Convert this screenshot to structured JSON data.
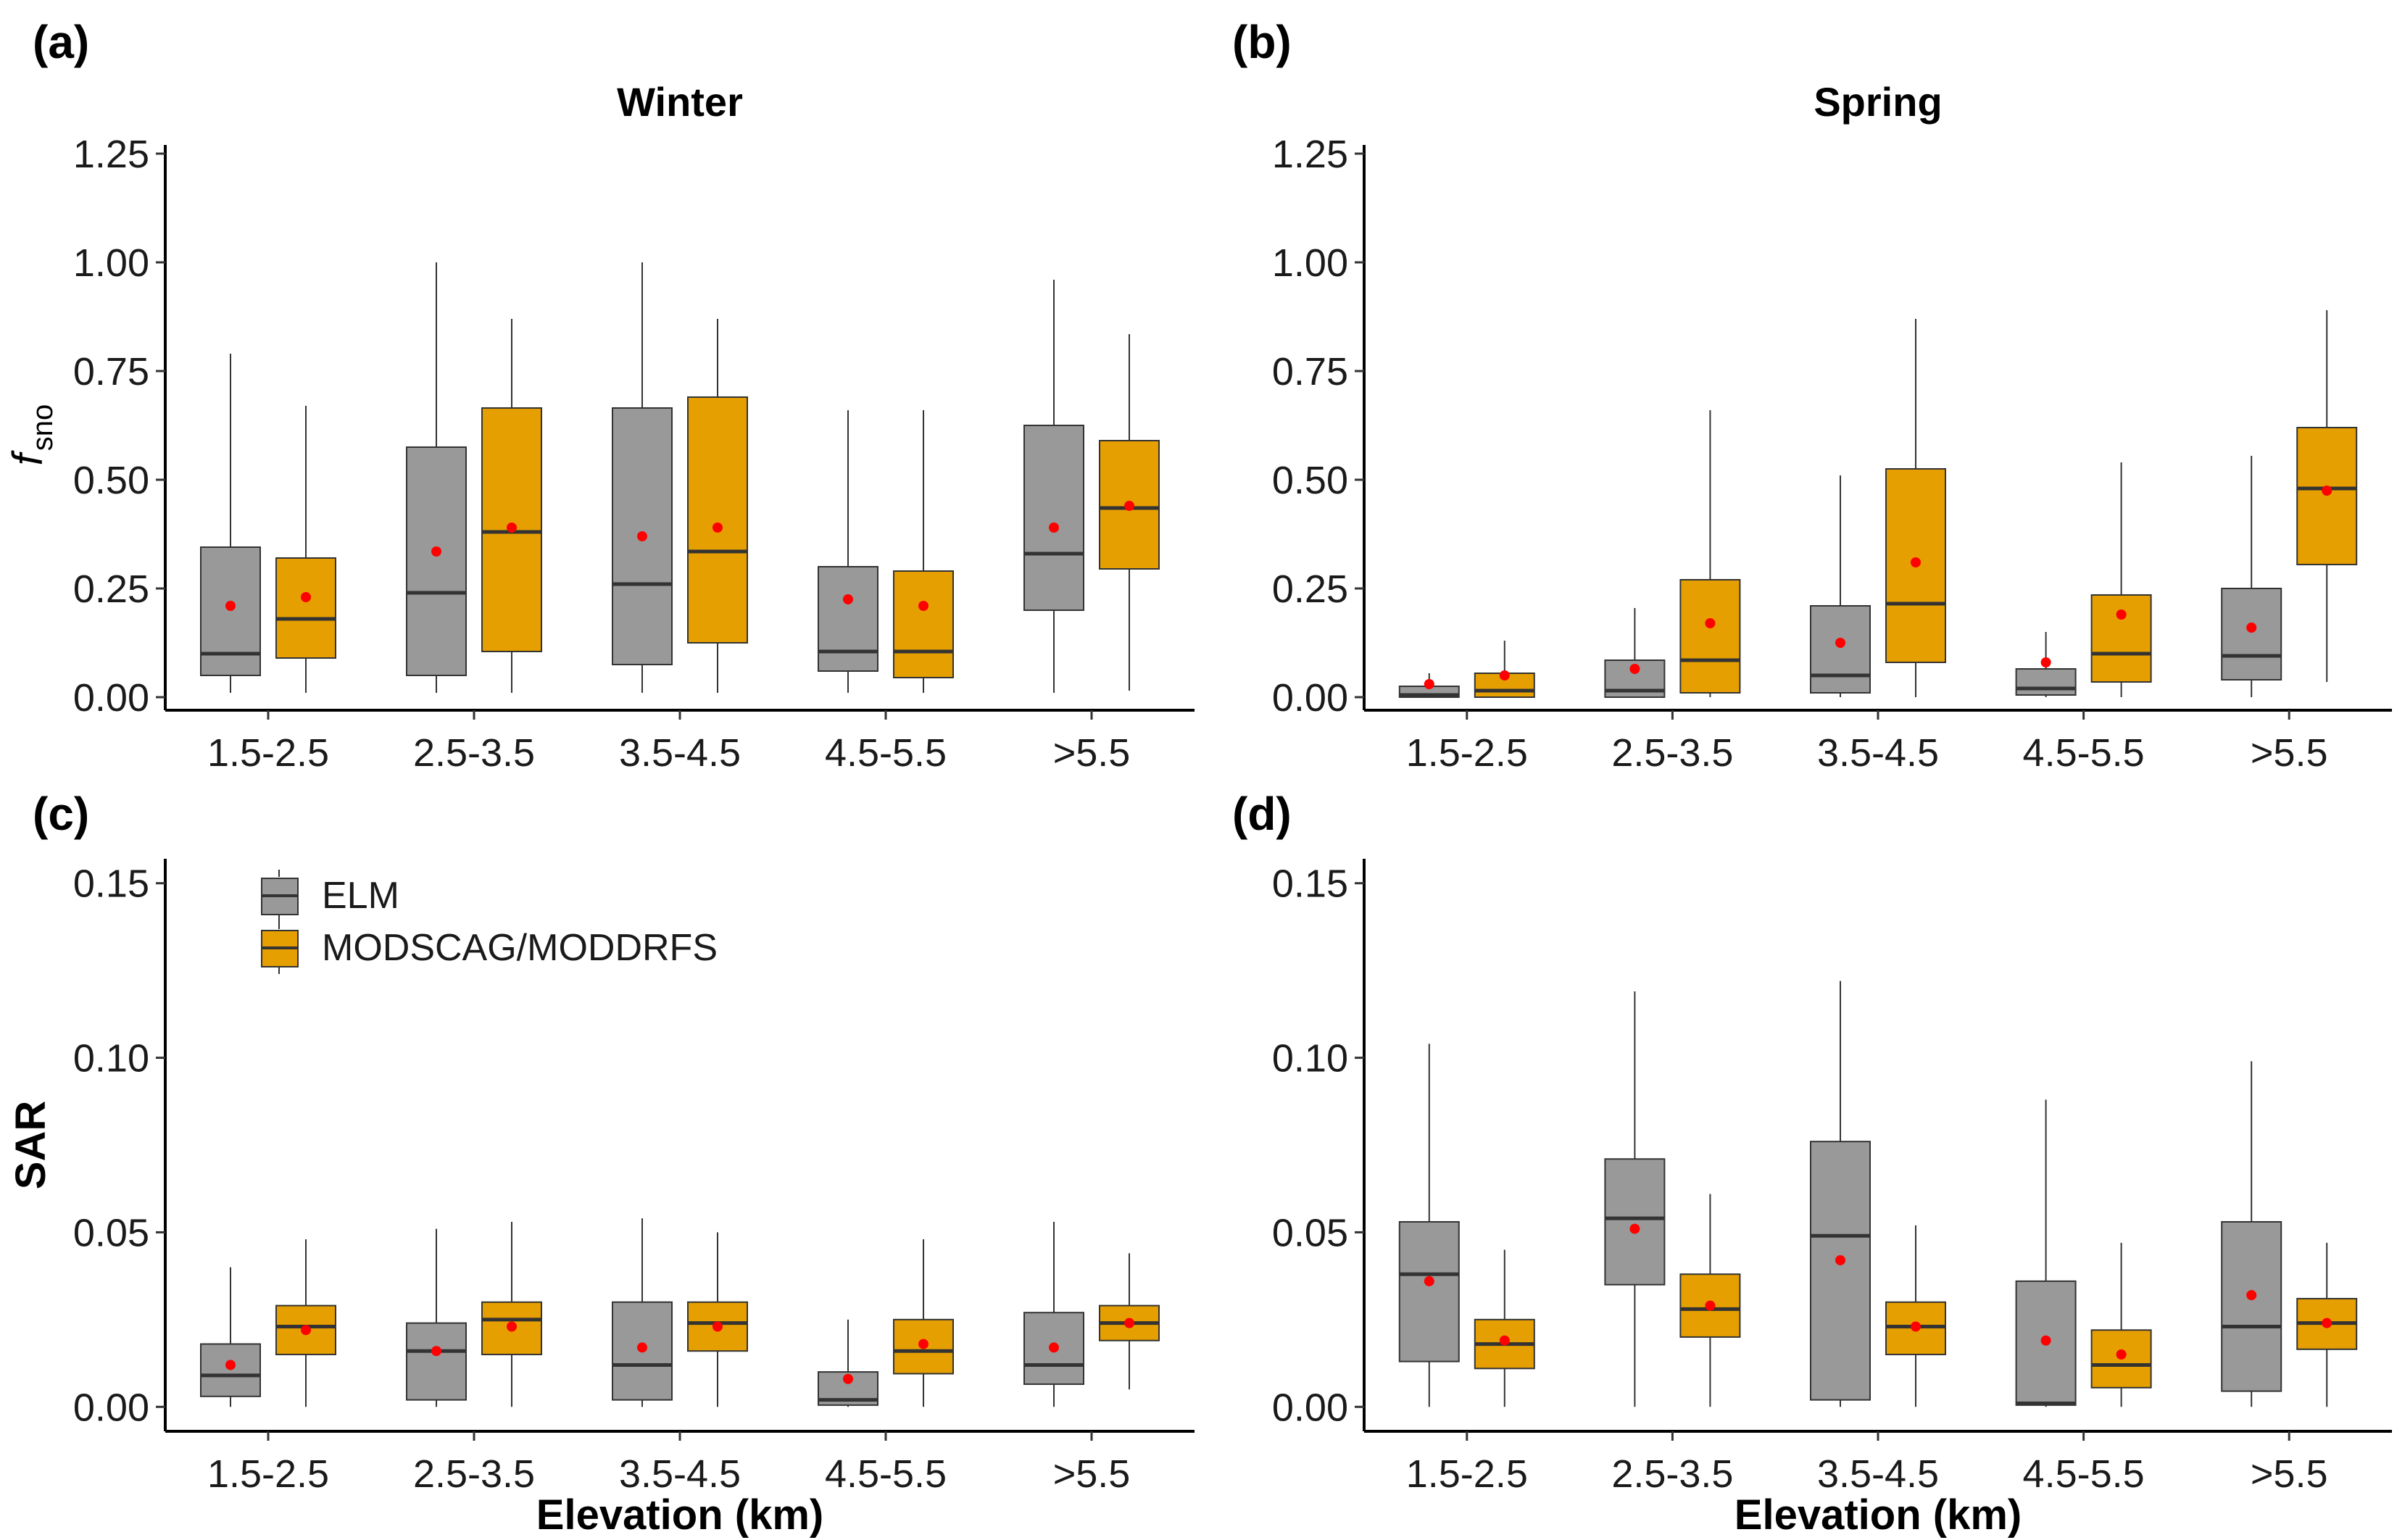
{
  "colors": {
    "ELM": "#999999",
    "MODSCAG/MODDRFS": "#E69F00",
    "mean_point": "#FF0000",
    "line": "#333333"
  },
  "legend": {
    "items": [
      {
        "label": "ELM",
        "color": "#999999"
      },
      {
        "label": "MODSCAG/MODDRFS",
        "color": "#E69F00"
      }
    ],
    "position": "top-left of panel (c)"
  },
  "chart_data": [
    {
      "type": "box",
      "tag": "(a)",
      "title": "Winter",
      "ylabel_main": "f",
      "ylabel_sub": "sno",
      "xlabel": "",
      "categories": [
        "1.5-2.5",
        "2.5-3.5",
        "3.5-4.5",
        "4.5-5.5",
        ">5.5"
      ],
      "ylim": [
        -0.03,
        1.27
      ],
      "yticks": [
        "0.00",
        "0.25",
        "0.50",
        "0.75",
        "1.00",
        "1.25"
      ],
      "series": [
        {
          "name": "ELM",
          "boxes": [
            {
              "min": 0.01,
              "q1": 0.05,
              "median": 0.1,
              "q3": 0.345,
              "max": 0.79,
              "mean": 0.21
            },
            {
              "min": 0.01,
              "q1": 0.05,
              "median": 0.24,
              "q3": 0.575,
              "max": 1.0,
              "mean": 0.335
            },
            {
              "min": 0.01,
              "q1": 0.075,
              "median": 0.26,
              "q3": 0.665,
              "max": 1.0,
              "mean": 0.37
            },
            {
              "min": 0.01,
              "q1": 0.06,
              "median": 0.105,
              "q3": 0.3,
              "max": 0.66,
              "mean": 0.225
            },
            {
              "min": 0.01,
              "q1": 0.2,
              "median": 0.33,
              "q3": 0.625,
              "max": 0.96,
              "mean": 0.39
            }
          ]
        },
        {
          "name": "MODSCAG/MODDRFS",
          "boxes": [
            {
              "min": 0.01,
              "q1": 0.09,
              "median": 0.18,
              "q3": 0.32,
              "max": 0.67,
              "mean": 0.23
            },
            {
              "min": 0.01,
              "q1": 0.105,
              "median": 0.38,
              "q3": 0.665,
              "max": 0.87,
              "mean": 0.39
            },
            {
              "min": 0.01,
              "q1": 0.125,
              "median": 0.335,
              "q3": 0.69,
              "max": 0.87,
              "mean": 0.39
            },
            {
              "min": 0.01,
              "q1": 0.045,
              "median": 0.105,
              "q3": 0.29,
              "max": 0.66,
              "mean": 0.21
            },
            {
              "min": 0.015,
              "q1": 0.295,
              "median": 0.435,
              "q3": 0.59,
              "max": 0.835,
              "mean": 0.44
            }
          ]
        }
      ]
    },
    {
      "type": "box",
      "tag": "(b)",
      "title": "Spring",
      "xlabel": "",
      "categories": [
        "1.5-2.5",
        "2.5-3.5",
        "3.5-4.5",
        "4.5-5.5",
        ">5.5"
      ],
      "ylim": [
        -0.03,
        1.27
      ],
      "yticks": [
        "0.00",
        "0.25",
        "0.50",
        "0.75",
        "1.00",
        "1.25"
      ],
      "series": [
        {
          "name": "ELM",
          "boxes": [
            {
              "min": 0.0,
              "q1": 0.0,
              "median": 0.005,
              "q3": 0.025,
              "max": 0.055,
              "mean": 0.03
            },
            {
              "min": 0.0,
              "q1": 0.0,
              "median": 0.015,
              "q3": 0.085,
              "max": 0.205,
              "mean": 0.065
            },
            {
              "min": 0.0,
              "q1": 0.01,
              "median": 0.05,
              "q3": 0.21,
              "max": 0.51,
              "mean": 0.125
            },
            {
              "min": 0.0,
              "q1": 0.005,
              "median": 0.02,
              "q3": 0.065,
              "max": 0.15,
              "mean": 0.08
            },
            {
              "min": 0.0,
              "q1": 0.04,
              "median": 0.095,
              "q3": 0.25,
              "max": 0.555,
              "mean": 0.16
            }
          ]
        },
        {
          "name": "MODSCAG/MODDRFS",
          "boxes": [
            {
              "min": 0.0,
              "q1": 0.0,
              "median": 0.015,
              "q3": 0.055,
              "max": 0.13,
              "mean": 0.05
            },
            {
              "min": 0.0,
              "q1": 0.01,
              "median": 0.085,
              "q3": 0.27,
              "max": 0.66,
              "mean": 0.17
            },
            {
              "min": 0.0,
              "q1": 0.08,
              "median": 0.215,
              "q3": 0.525,
              "max": 0.87,
              "mean": 0.31
            },
            {
              "min": 0.0,
              "q1": 0.035,
              "median": 0.1,
              "q3": 0.235,
              "max": 0.54,
              "mean": 0.19
            },
            {
              "min": 0.035,
              "q1": 0.305,
              "median": 0.48,
              "q3": 0.62,
              "max": 0.89,
              "mean": 0.475
            }
          ]
        }
      ]
    },
    {
      "type": "box",
      "tag": "(c)",
      "title": "",
      "ylabel_main": "SAR",
      "xlabel": "Elevation (km)",
      "categories": [
        "1.5-2.5",
        "2.5-3.5",
        "3.5-4.5",
        "4.5-5.5",
        ">5.5"
      ],
      "ylim": [
        -0.007,
        0.157
      ],
      "yticks": [
        "0.00",
        "0.05",
        "0.10",
        "0.15"
      ],
      "series": [
        {
          "name": "ELM",
          "boxes": [
            {
              "min": 0.0,
              "q1": 0.003,
              "median": 0.009,
              "q3": 0.018,
              "max": 0.04,
              "mean": 0.012
            },
            {
              "min": 0.0,
              "q1": 0.002,
              "median": 0.016,
              "q3": 0.024,
              "max": 0.051,
              "mean": 0.016
            },
            {
              "min": 0.0,
              "q1": 0.002,
              "median": 0.012,
              "q3": 0.03,
              "max": 0.054,
              "mean": 0.017
            },
            {
              "min": 0.0,
              "q1": 0.0005,
              "median": 0.002,
              "q3": 0.01,
              "max": 0.025,
              "mean": 0.008
            },
            {
              "min": 0.0,
              "q1": 0.0065,
              "median": 0.012,
              "q3": 0.027,
              "max": 0.053,
              "mean": 0.017
            }
          ]
        },
        {
          "name": "MODSCAG/MODDRFS",
          "boxes": [
            {
              "min": 0.0,
              "q1": 0.015,
              "median": 0.023,
              "q3": 0.029,
              "max": 0.048,
              "mean": 0.022
            },
            {
              "min": 0.0,
              "q1": 0.015,
              "median": 0.025,
              "q3": 0.03,
              "max": 0.053,
              "mean": 0.023
            },
            {
              "min": 0.0,
              "q1": 0.016,
              "median": 0.024,
              "q3": 0.03,
              "max": 0.05,
              "mean": 0.023
            },
            {
              "min": 0.0,
              "q1": 0.0095,
              "median": 0.016,
              "q3": 0.025,
              "max": 0.048,
              "mean": 0.018
            },
            {
              "min": 0.005,
              "q1": 0.019,
              "median": 0.024,
              "q3": 0.029,
              "max": 0.044,
              "mean": 0.024
            }
          ]
        }
      ]
    },
    {
      "type": "box",
      "tag": "(d)",
      "title": "",
      "xlabel": "Elevation (km)",
      "categories": [
        "1.5-2.5",
        "2.5-3.5",
        "3.5-4.5",
        "4.5-5.5",
        ">5.5"
      ],
      "ylim": [
        -0.007,
        0.157
      ],
      "yticks": [
        "0.00",
        "0.05",
        "0.10",
        "0.15"
      ],
      "series": [
        {
          "name": "ELM",
          "boxes": [
            {
              "min": 0.0,
              "q1": 0.013,
              "median": 0.038,
              "q3": 0.053,
              "max": 0.104,
              "mean": 0.036
            },
            {
              "min": 0.0,
              "q1": 0.035,
              "median": 0.054,
              "q3": 0.071,
              "max": 0.119,
              "mean": 0.051
            },
            {
              "min": 0.0,
              "q1": 0.002,
              "median": 0.049,
              "q3": 0.076,
              "max": 0.122,
              "mean": 0.042
            },
            {
              "min": 0.0,
              "q1": 0.0005,
              "median": 0.001,
              "q3": 0.036,
              "max": 0.088,
              "mean": 0.019
            },
            {
              "min": 0.0,
              "q1": 0.0045,
              "median": 0.023,
              "q3": 0.053,
              "max": 0.099,
              "mean": 0.032
            }
          ]
        },
        {
          "name": "MODSCAG/MODDRFS",
          "boxes": [
            {
              "min": 0.0,
              "q1": 0.011,
              "median": 0.018,
              "q3": 0.025,
              "max": 0.045,
              "mean": 0.019
            },
            {
              "min": 0.0,
              "q1": 0.02,
              "median": 0.028,
              "q3": 0.038,
              "max": 0.061,
              "mean": 0.029
            },
            {
              "min": 0.0,
              "q1": 0.015,
              "median": 0.023,
              "q3": 0.03,
              "max": 0.052,
              "mean": 0.023
            },
            {
              "min": 0.0,
              "q1": 0.0055,
              "median": 0.012,
              "q3": 0.022,
              "max": 0.047,
              "mean": 0.015
            },
            {
              "min": 0.0,
              "q1": 0.0165,
              "median": 0.024,
              "q3": 0.031,
              "max": 0.047,
              "mean": 0.024
            }
          ]
        }
      ]
    }
  ]
}
